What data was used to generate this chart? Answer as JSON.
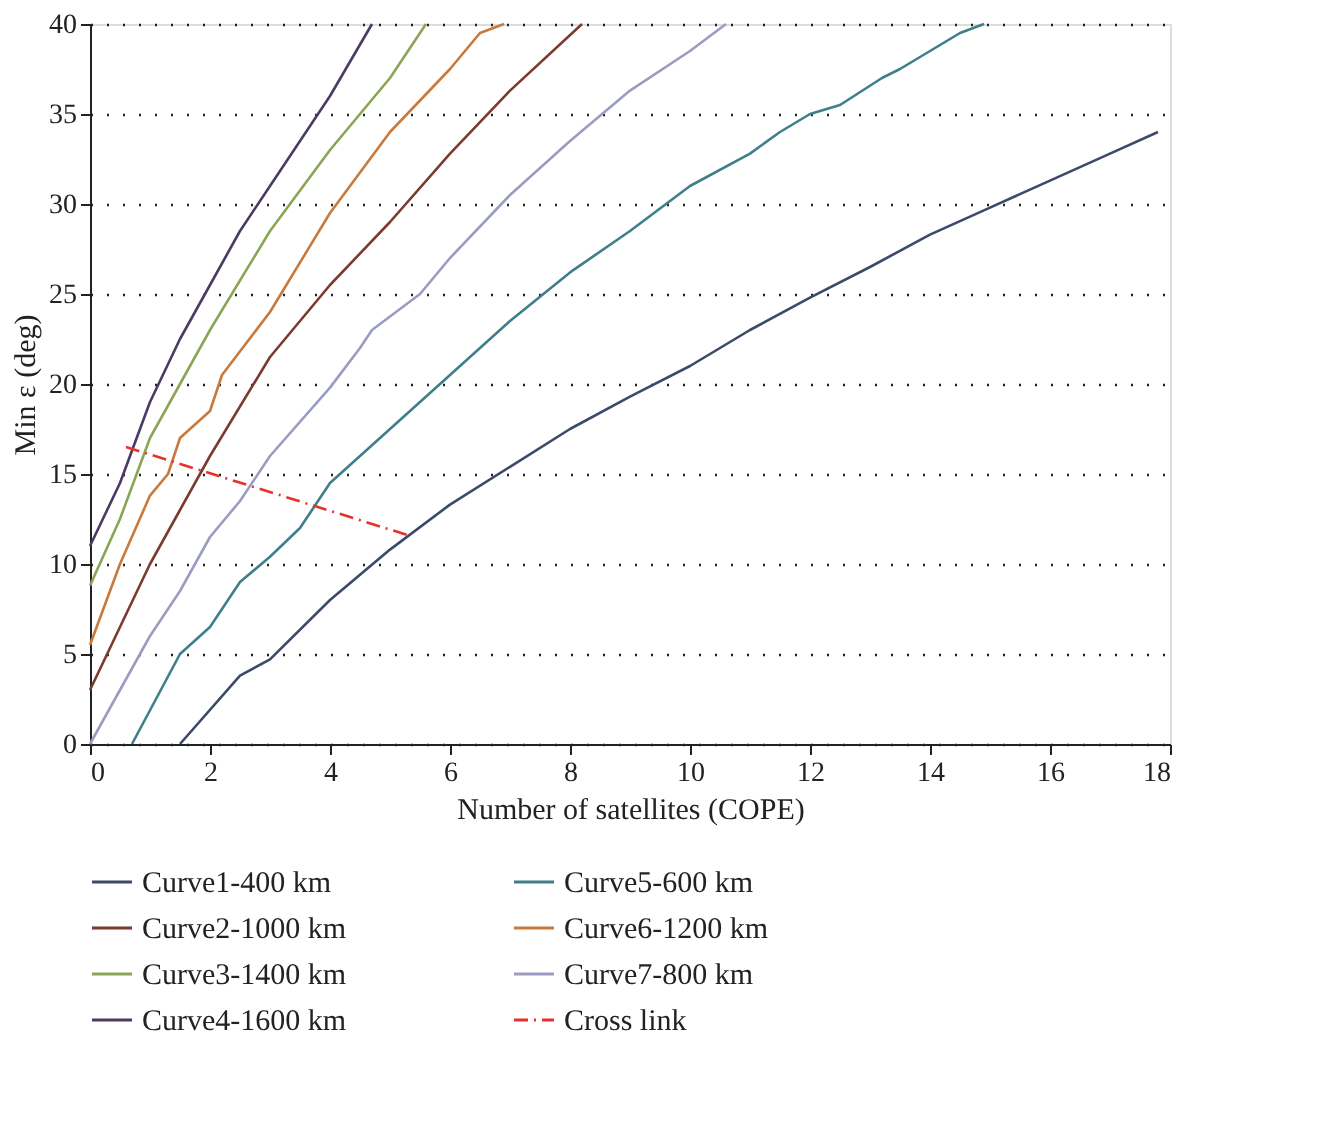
{
  "chart_data": {
    "type": "line",
    "xlabel": "Number of satellites (COPE)",
    "ylabel": "Min ε (deg)",
    "xlim": [
      0,
      18
    ],
    "ylim": [
      0,
      40
    ],
    "xticks": [
      0,
      2,
      4,
      6,
      8,
      10,
      12,
      14,
      16,
      18
    ],
    "yticks": [
      0,
      5,
      10,
      15,
      20,
      25,
      30,
      35,
      40
    ],
    "grid": "y",
    "legend": "bottom",
    "marker": "none",
    "line_style": "solid",
    "series": [
      {
        "name": "Curve1-400 km",
        "color": "#3b4a6b",
        "x": [
          1.5,
          2.5,
          3,
          4,
          5,
          6,
          7,
          8,
          9,
          10,
          11,
          12,
          13,
          14,
          15,
          16,
          17,
          17.8
        ],
        "values": [
          0,
          3.8,
          4.7,
          8,
          10.8,
          13.3,
          15.4,
          17.5,
          19.3,
          21,
          23,
          24.8,
          26.5,
          28.3,
          29.8,
          31.3,
          32.8,
          34
        ]
      },
      {
        "name": "Curve2-1000 km",
        "color": "#7a3b2e",
        "x": [
          0,
          0.5,
          1,
          1.5,
          2,
          3,
          4,
          5,
          6,
          7,
          8.2
        ],
        "values": [
          3,
          6.5,
          10,
          13,
          16,
          21.5,
          25.5,
          29,
          32.8,
          36.3,
          40
        ]
      },
      {
        "name": "Curve3-1400 km",
        "color": "#8aa555",
        "x": [
          0,
          0.5,
          1,
          2,
          3,
          4,
          5,
          5.6
        ],
        "values": [
          8.8,
          12.5,
          17,
          23,
          28.5,
          33,
          37,
          40
        ]
      },
      {
        "name": "Curve4-1600 km",
        "color": "#4b3a64",
        "x": [
          0,
          0.5,
          1,
          1.5,
          2,
          2.5,
          3,
          4,
          4.7
        ],
        "values": [
          11,
          14.5,
          19,
          22.5,
          25.5,
          28.5,
          31,
          36,
          40
        ]
      },
      {
        "name": "Curve5-600 km",
        "color": "#3e7f8a",
        "x": [
          0.7,
          1.5,
          2,
          2.5,
          3,
          3.5,
          4,
          5,
          6,
          7,
          8,
          9,
          10,
          11,
          11.5,
          12,
          12.5,
          13.2,
          13.5,
          14,
          14.5,
          14.9
        ],
        "values": [
          0,
          5,
          6.5,
          9,
          10.4,
          12,
          14.5,
          17.5,
          20.5,
          23.5,
          26.2,
          28.5,
          31,
          32.8,
          34,
          35,
          35.5,
          37,
          37.5,
          38.5,
          39.5,
          40
        ]
      },
      {
        "name": "Curve6-1200 km",
        "color": "#c87a3c",
        "x": [
          0,
          0.5,
          1,
          1.3,
          1.5,
          2,
          2.2,
          3,
          4,
          5,
          6,
          6.5,
          6.9
        ],
        "values": [
          5.5,
          10,
          13.8,
          15,
          17,
          18.5,
          20.5,
          24,
          29.5,
          34,
          37.5,
          39.5,
          40
        ]
      },
      {
        "name": "Curve7-800 km",
        "color": "#9a9cc4",
        "x": [
          0,
          1,
          1.5,
          2,
          2.5,
          3,
          4,
          4.5,
          4.7,
          5.5,
          6,
          7,
          8,
          9,
          10,
          10.6
        ],
        "values": [
          0,
          6,
          8.5,
          11.5,
          13.5,
          16,
          19.8,
          22,
          23,
          25,
          27,
          30.5,
          33.5,
          36.3,
          38.5,
          40
        ]
      },
      {
        "name": "Cross link",
        "color": "#e8312a",
        "line_style": "dashed",
        "x": [
          0.6,
          5.3
        ],
        "values": [
          16.5,
          11.6
        ]
      }
    ]
  }
}
